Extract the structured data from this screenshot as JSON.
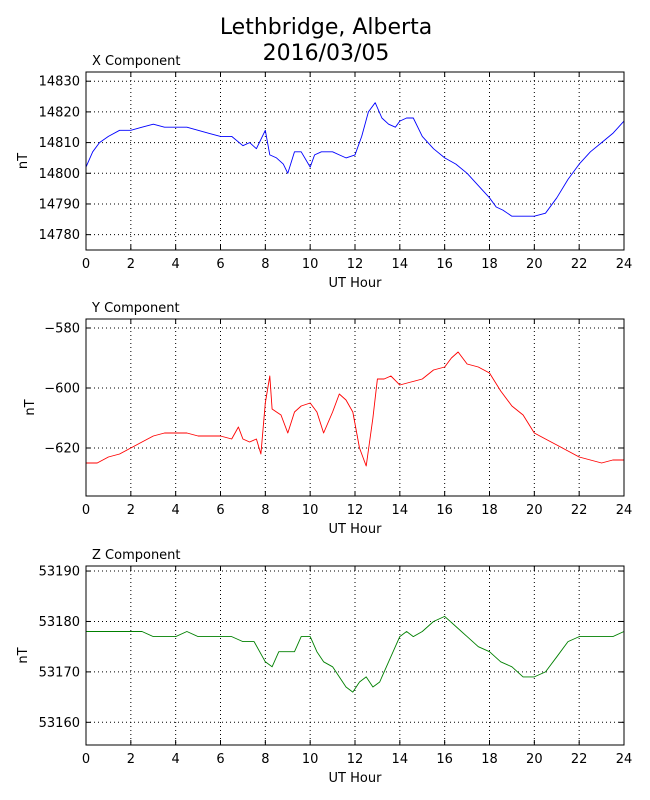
{
  "title_line1": "Lethbridge, Alberta",
  "title_line2": "2016/03/05",
  "chart_data": [
    {
      "type": "line",
      "panel_title": "X Component",
      "xlabel": "UT Hour",
      "ylabel": "nT",
      "xlim": [
        0,
        24
      ],
      "ylim": [
        14775,
        14833
      ],
      "xticks": [
        0,
        2,
        4,
        6,
        8,
        10,
        12,
        14,
        16,
        18,
        20,
        22,
        24
      ],
      "yticks": [
        14780,
        14790,
        14800,
        14810,
        14820,
        14830
      ],
      "grid": true,
      "series": [
        {
          "color": "#0000ff",
          "x": [
            0,
            0.3,
            0.6,
            1,
            1.5,
            2,
            2.5,
            3,
            3.5,
            4,
            4.5,
            5,
            5.5,
            6,
            6.5,
            7,
            7.3,
            7.6,
            8,
            8.2,
            8.5,
            8.8,
            9,
            9.3,
            9.6,
            10,
            10.2,
            10.5,
            11,
            11.3,
            11.6,
            12,
            12.3,
            12.6,
            12.9,
            13.2,
            13.5,
            13.8,
            14,
            14.3,
            14.6,
            15,
            15.5,
            16,
            16.5,
            17,
            17.5,
            18,
            18.3,
            18.6,
            19,
            19.5,
            20,
            20.5,
            21,
            21.5,
            22,
            22.5,
            23,
            23.5,
            24
          ],
          "y": [
            14802,
            14807,
            14810,
            14812,
            14814,
            14814,
            14815,
            14816,
            14815,
            14815,
            14815,
            14814,
            14813,
            14812,
            14812,
            14809,
            14810,
            14808,
            14814,
            14806,
            14805,
            14803,
            14800,
            14807,
            14807,
            14802,
            14806,
            14807,
            14807,
            14806,
            14805,
            14806,
            14812,
            14820,
            14823,
            14818,
            14816,
            14815,
            14817,
            14818,
            14818,
            14812,
            14808,
            14805,
            14803,
            14800,
            14796,
            14792,
            14789,
            14788,
            14786,
            14786,
            14786,
            14787,
            14792,
            14798,
            14803,
            14807,
            14810,
            14813,
            14817
          ]
        }
      ]
    },
    {
      "type": "line",
      "panel_title": "Y Component",
      "xlabel": "UT Hour",
      "ylabel": "nT",
      "xlim": [
        0,
        24
      ],
      "ylim": [
        -636,
        -577
      ],
      "xticks": [
        0,
        2,
        4,
        6,
        8,
        10,
        12,
        14,
        16,
        18,
        20,
        22,
        24
      ],
      "yticks": [
        -580,
        -600,
        -620
      ],
      "grid": true,
      "series": [
        {
          "color": "#ff0000",
          "x": [
            0,
            0.5,
            1,
            1.5,
            2,
            2.5,
            3,
            3.5,
            4,
            4.5,
            5,
            5.5,
            6,
            6.5,
            6.8,
            7,
            7.3,
            7.6,
            7.8,
            8,
            8.2,
            8.3,
            8.5,
            8.7,
            9,
            9.3,
            9.6,
            10,
            10.3,
            10.6,
            11,
            11.3,
            11.6,
            11.9,
            12.2,
            12.5,
            12.8,
            13,
            13.3,
            13.6,
            14,
            14.5,
            15,
            15.5,
            16,
            16.3,
            16.6,
            17,
            17.5,
            18,
            18.5,
            19,
            19.5,
            20,
            20.5,
            21,
            21.5,
            22,
            22.5,
            23,
            23.5,
            24
          ],
          "y": [
            -625,
            -625,
            -623,
            -622,
            -620,
            -618,
            -616,
            -615,
            -615,
            -615,
            -616,
            -616,
            -616,
            -617,
            -613,
            -617,
            -618,
            -617,
            -622,
            -605,
            -596,
            -607,
            -608,
            -609,
            -615,
            -608,
            -606,
            -605,
            -608,
            -615,
            -608,
            -602,
            -604,
            -608,
            -620,
            -626,
            -610,
            -597,
            -597,
            -596,
            -599,
            -598,
            -597,
            -594,
            -593,
            -590,
            -588,
            -592,
            -593,
            -595,
            -601,
            -606,
            -609,
            -615,
            -617,
            -619,
            -621,
            -623,
            -624,
            -625,
            -624,
            -624
          ]
        }
      ]
    },
    {
      "type": "line",
      "panel_title": "Z Component",
      "xlabel": "UT Hour",
      "ylabel": "nT",
      "xlim": [
        0,
        24
      ],
      "ylim": [
        53155.5,
        53191
      ],
      "xticks": [
        0,
        2,
        4,
        6,
        8,
        10,
        12,
        14,
        16,
        18,
        20,
        22,
        24
      ],
      "yticks": [
        53160,
        53170,
        53180,
        53190
      ],
      "grid": true,
      "series": [
        {
          "color": "#008000",
          "x": [
            0,
            0.5,
            1,
            1.5,
            2,
            2.5,
            3,
            3.5,
            4,
            4.5,
            5,
            5.5,
            6,
            6.5,
            7,
            7.5,
            8,
            8.3,
            8.6,
            9,
            9.3,
            9.6,
            10,
            10.3,
            10.6,
            11,
            11.3,
            11.6,
            11.9,
            12.2,
            12.5,
            12.8,
            13.1,
            13.4,
            13.7,
            14,
            14.3,
            14.6,
            15,
            15.5,
            16,
            16.5,
            17,
            17.5,
            18,
            18.5,
            19,
            19.5,
            20,
            20.5,
            21,
            21.5,
            22,
            22.5,
            23,
            23.5,
            24
          ],
          "y": [
            53178,
            53178,
            53178,
            53178,
            53178,
            53178,
            53177,
            53177,
            53177,
            53178,
            53177,
            53177,
            53177,
            53177,
            53176,
            53176,
            53172,
            53171,
            53174,
            53174,
            53174,
            53177,
            53177,
            53174,
            53172,
            53171,
            53169,
            53167,
            53166,
            53168,
            53169,
            53167,
            53168,
            53171,
            53174,
            53177,
            53178,
            53177,
            53178,
            53180,
            53181,
            53179,
            53177,
            53175,
            53174,
            53172,
            53171,
            53169,
            53169,
            53170,
            53173,
            53176,
            53177,
            53177,
            53177,
            53177,
            53178
          ]
        }
      ]
    }
  ]
}
